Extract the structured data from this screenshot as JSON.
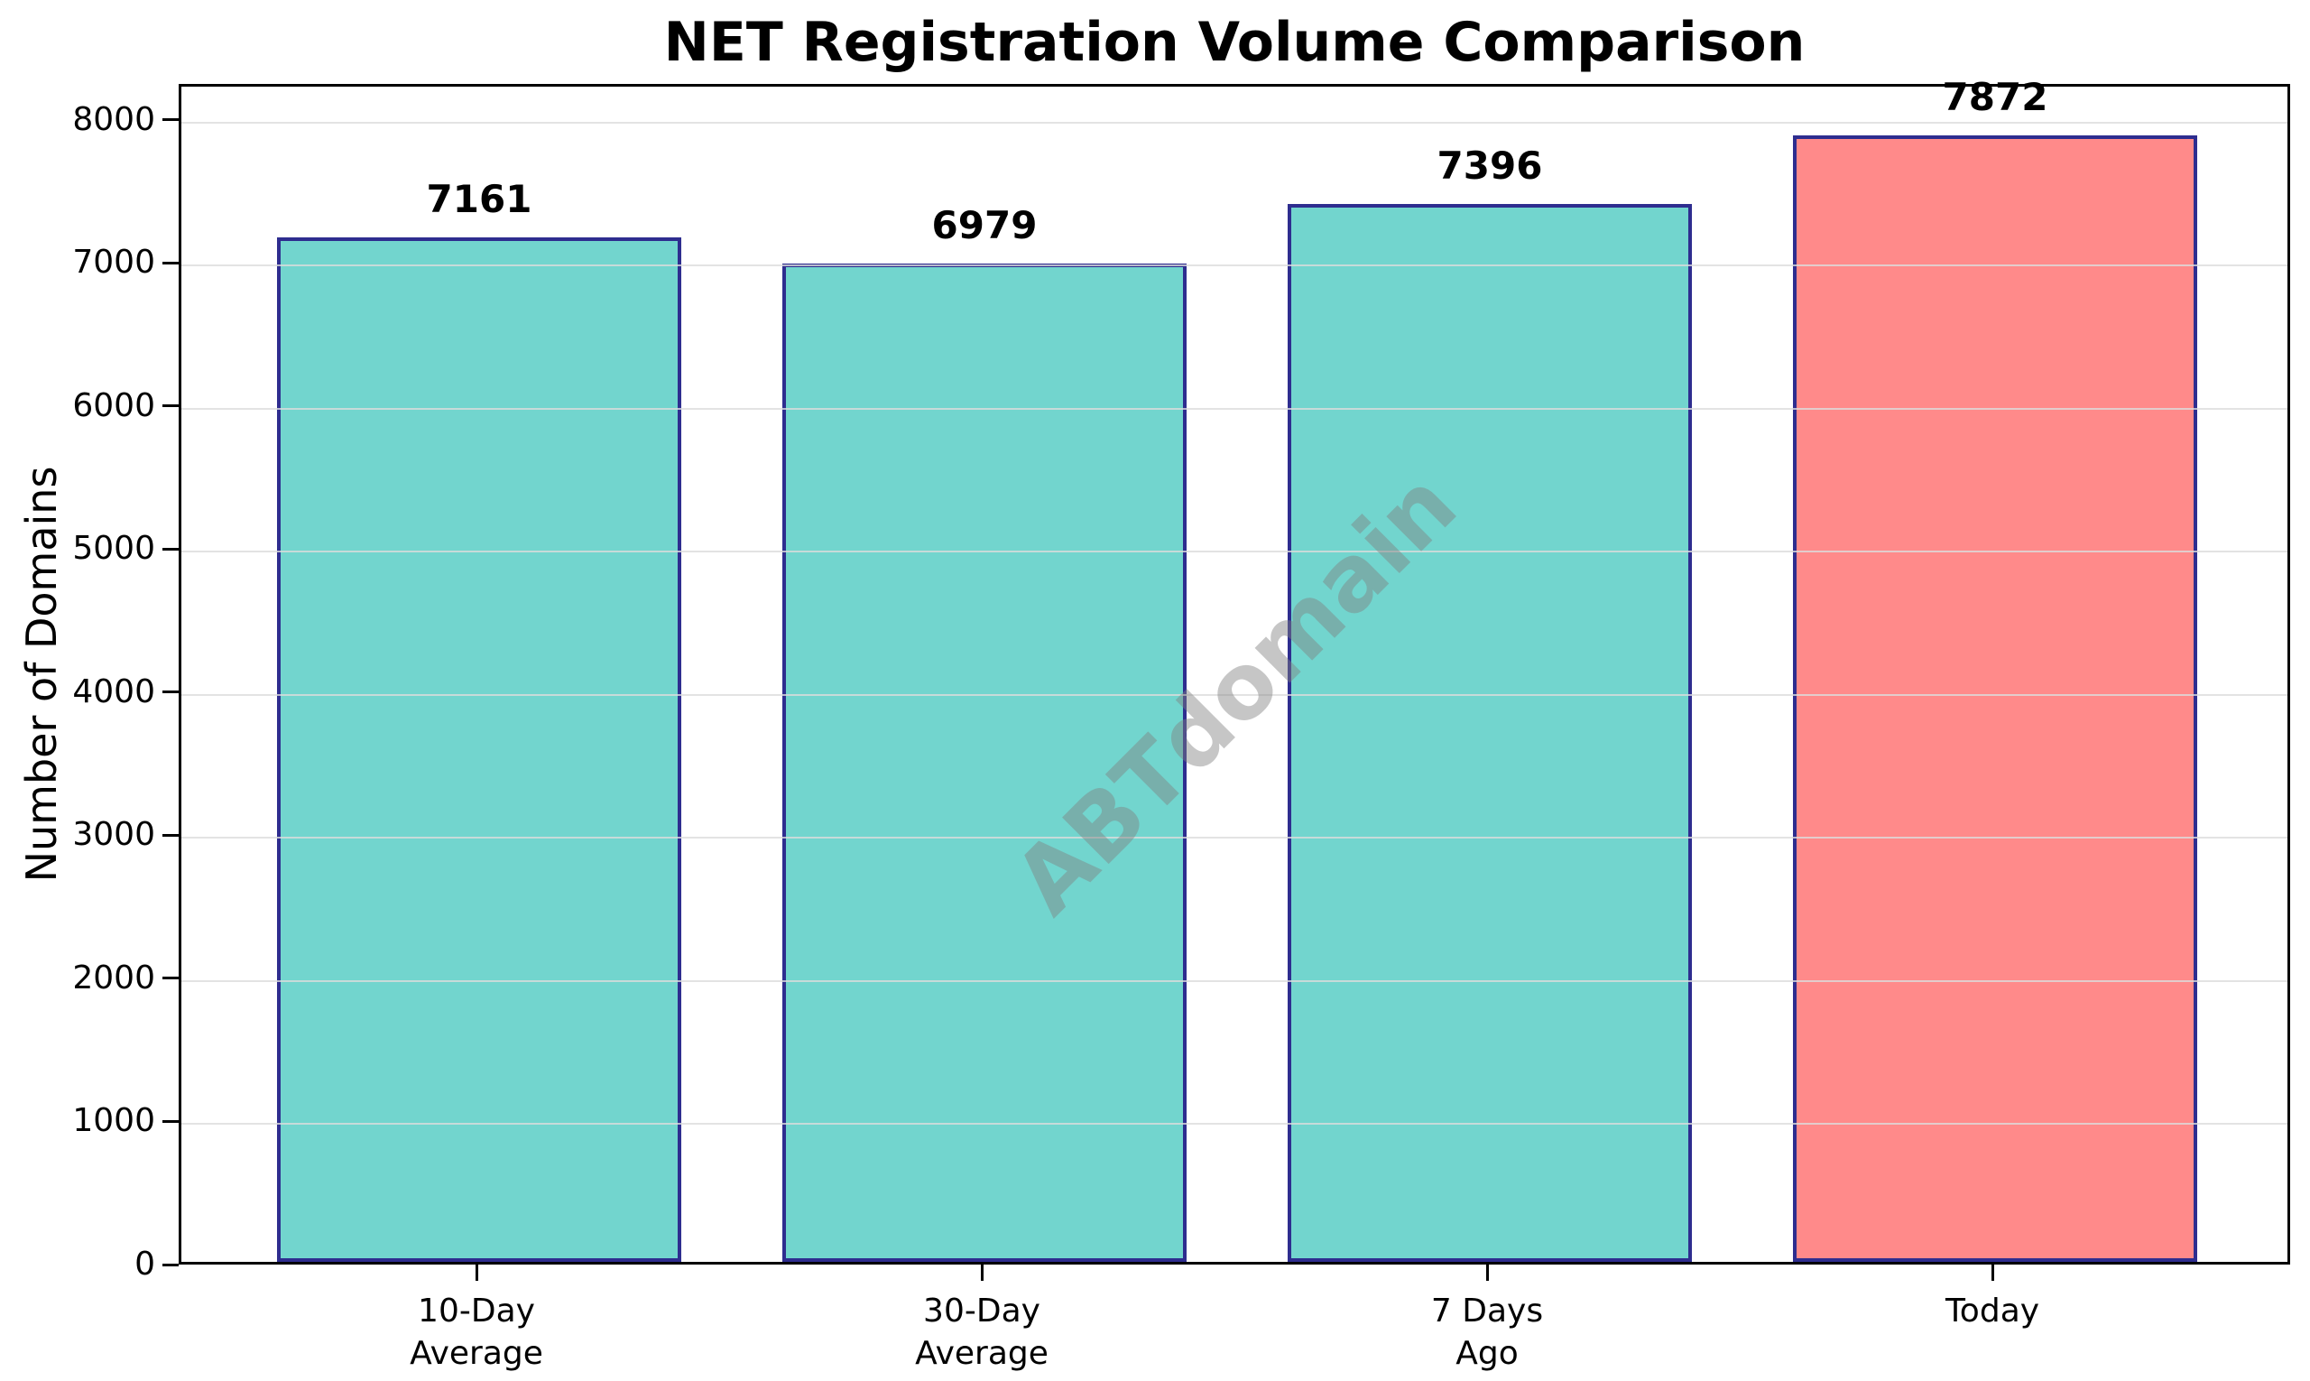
{
  "title": "NET Registration Volume Comparison",
  "watermark_text": "ABTdomain",
  "colors": {
    "bar_teal": "#72D5CE",
    "bar_highlight": "#FF8A8A",
    "bar_edge": "#2E2D8F",
    "gridline": "#DCDCDC",
    "spine": "#000000",
    "text": "#000000",
    "watermark": "#808080"
  },
  "chart_data": {
    "type": "bar",
    "title": "NET Registration Volume Comparison",
    "categories": [
      "10-Day Average",
      "30-Day Average",
      "7 Days Ago",
      "Today"
    ],
    "category_lines": [
      [
        "10-Day",
        "Average"
      ],
      [
        "30-Day",
        "Average"
      ],
      [
        "7 Days",
        "Ago"
      ],
      [
        "Today"
      ]
    ],
    "values": [
      7161,
      6979,
      7396,
      7872
    ],
    "value_labels": [
      "7161",
      "6979",
      "7396",
      "7872"
    ],
    "bar_colors": [
      "#72D5CE",
      "#72D5CE",
      "#72D5CE",
      "#FF8A8A"
    ],
    "edge_color": "#2E2D8F",
    "xlabel": "",
    "ylabel": "Number of Domains",
    "ylim": [
      0,
      8252
    ],
    "yticks": [
      0,
      1000,
      2000,
      3000,
      4000,
      5000,
      6000,
      7000,
      8000
    ],
    "grid": true,
    "grid_axis": "y",
    "legend": false,
    "watermark": "ABTdomain"
  }
}
